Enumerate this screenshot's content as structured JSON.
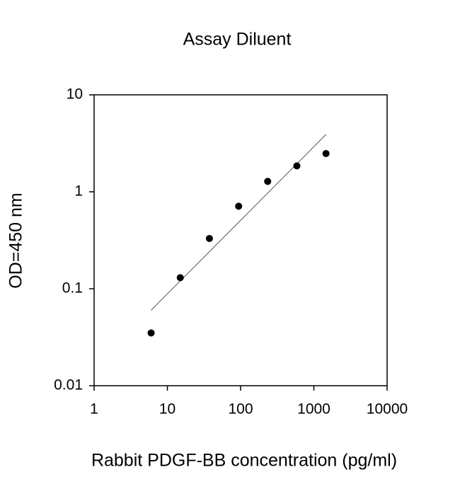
{
  "chart_data": {
    "type": "scatter",
    "title": "Assay Diluent",
    "x_label": "Rabbit PDGF-BB concentration (pg/ml)",
    "y_label": "OD=450 nm",
    "xscale": "log",
    "yscale": "log",
    "xlim": [
      1,
      10000
    ],
    "ylim": [
      0.01,
      10
    ],
    "xticks": [
      1,
      10,
      100,
      1000,
      10000
    ],
    "yticks": [
      0.01,
      0.1,
      1,
      10
    ],
    "x": [
      6,
      15,
      37.5,
      94,
      234,
      586,
      1465
    ],
    "values": [
      0.035,
      0.13,
      0.33,
      0.71,
      1.28,
      1.85,
      2.48
    ],
    "color": "#000000",
    "fit_line": {
      "x": [
        6,
        1465
      ],
      "y": [
        0.06,
        3.9
      ],
      "color": "#555555"
    }
  }
}
